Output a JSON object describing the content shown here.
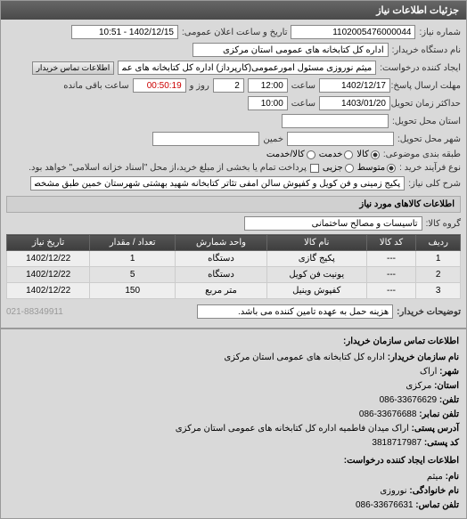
{
  "panel_title": "جزئیات اطلاعات نیاز",
  "r1": {
    "lbl1": "شماره نیاز:",
    "val1": "1102005476000044",
    "lbl2": "تاریخ و ساعت اعلان عمومی:",
    "val2": "1402/12/15 - 10:51"
  },
  "r2": {
    "lbl": "نام دستگاه خریدار:",
    "val": "اداره کل کتابخانه های عمومی استان مرکزی"
  },
  "r3": {
    "lbl": "ایجاد کننده درخواست:",
    "val1": "میثم نوروزی مسئول امورعمومی(کارپرداز) اداره کل کتابخانه های عمومی استان",
    "btn": "اطلاعات تماس خریدار"
  },
  "r4": {
    "lbl1": "مهلت ارسال پاسخ: تا تاریخ:",
    "val1": "1402/12/17",
    "lbl2": "ساعت",
    "val2": "12:00",
    "val3": "2",
    "lbl3": "روز و",
    "val4": "00:50:19",
    "lbl4": "ساعت باقی مانده"
  },
  "r5": {
    "lbl1": "حداکثر زمان تحویل پیشنهاد: تا تاریخ:",
    "val1": "1403/01/20",
    "lbl2": "ساعت",
    "val2": "10:00"
  },
  "r6": {
    "lbl": "استان محل تحویل:",
    "val": ""
  },
  "r7": {
    "lbl1": "شهر محل تحویل:",
    "lbl2": "خمین",
    "val": ""
  },
  "r8": {
    "lbl": "طبقه بندی موضوعی:",
    "o1": "کالا",
    "o2": "خدمت",
    "o3": "کالا/خدمت"
  },
  "r9": {
    "lbl": "نوع فرآیند خرید :",
    "o1": "متوسط",
    "o2": "جزیی",
    "note": "پرداخت تمام یا بخشی از مبلغ خرید،از محل \"اسناد خزانه اسلامی\" خواهد بود."
  },
  "r10": {
    "lbl": "شرح کلی نیاز:",
    "val": "پکیج زمینی و فن کویل و کفپوش سالن آمفی تئاتر کتابخانه شهید بهشتی شهرستان خمین طبق مشخصات فایل پیوست"
  },
  "section2": "اطلاعات کالاهای مورد نیاز",
  "r11": {
    "lbl": "گروه کالا:",
    "val": "تاسیسات و مصالح ساختمانی"
  },
  "table": {
    "cols": [
      "ردیف",
      "کد کالا",
      "نام کالا",
      "واحد شمارش",
      "تعداد / مقدار",
      "تاریخ نیاز"
    ],
    "rows": [
      [
        "1",
        "---",
        "پکیج گازی",
        "دستگاه",
        "1",
        "1402/12/22"
      ],
      [
        "2",
        "---",
        "یونیت فن کویل",
        "دستگاه",
        "5",
        "1402/12/22"
      ],
      [
        "3",
        "---",
        "کفپوش وینیل",
        "متر مربع",
        "150",
        "1402/12/22"
      ]
    ]
  },
  "desc": {
    "lbl": "توضیحات خریدار:",
    "val": "هزینه حمل به عهده تامین کننده می باشد.",
    "phone": "021-88349911"
  },
  "contact": {
    "title1": "اطلاعات تماس سازمان خریدار:",
    "l1": "نام سازمان خریدار:",
    "v1": "اداره کل کتابخانه های عمومی استان مرکزی",
    "l2": "شهر:",
    "v2": "اراک",
    "l3": "استان:",
    "v3": "مرکزی",
    "l4": "تلفن:",
    "v4": "33676629-086",
    "l5": "تلفن نمابر:",
    "v5": "33676688-086",
    "l6": "آدرس پستی:",
    "v6": "اراک میدان فاطمیه اداره کل کتابخانه های عمومی استان مرکزی",
    "l7": "کد پستی:",
    "v7": "3818717987",
    "title2": "اطلاعات ایجاد کننده درخواست:",
    "l8": "نام:",
    "v8": "میثم",
    "l9": "نام خانوادگی:",
    "v9": "نوروزی",
    "l10": "تلفن تماس:",
    "v10": "33676631-086"
  }
}
